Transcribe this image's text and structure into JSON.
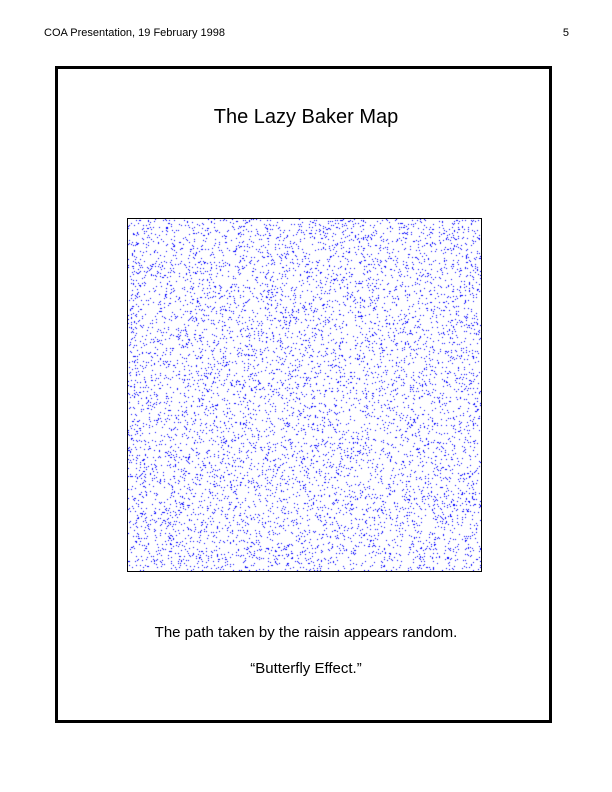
{
  "header": {
    "left_text": "COA Presentation, 19 February 1998",
    "page_number": "5"
  },
  "slide": {
    "title": "The Lazy Baker Map",
    "caption_line1": "The path taken by the raisin appears random.",
    "caption_line2": "“Butterfly Effect.”"
  },
  "plot": {
    "point_color": "#0000ff",
    "background_color": "#ffffff",
    "border_color": "#000000"
  }
}
